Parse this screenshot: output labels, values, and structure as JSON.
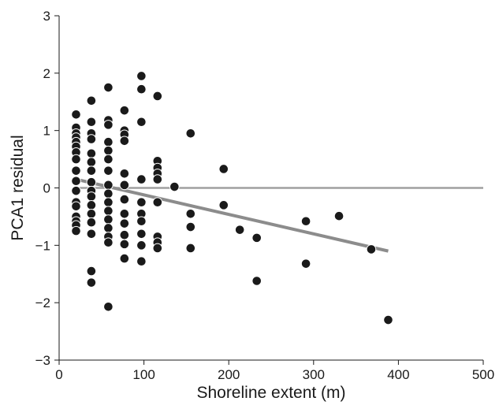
{
  "chart_data": {
    "type": "scatter",
    "xlabel": "Shoreline extent (m)",
    "ylabel": "PCA1 residual",
    "xlim": [
      0,
      500
    ],
    "ylim": [
      -3,
      3
    ],
    "x_ticks": [
      0,
      100,
      200,
      300,
      400,
      500
    ],
    "y_ticks": [
      3,
      2,
      1,
      0,
      -1,
      -2,
      -3
    ],
    "x_tick_labels": [
      "0",
      "100",
      "200",
      "300",
      "400",
      "500"
    ],
    "y_tick_labels": [
      "3",
      "2",
      "1",
      "0",
      "−1",
      "−2",
      "−3"
    ],
    "grid": false,
    "legend": "none",
    "marker_color": "#1a1a1a",
    "line_color": "#8c8c8c",
    "zero_line_color": "#a0a0a0",
    "points": [
      {
        "x": 20,
        "y": 1.28
      },
      {
        "x": 20,
        "y": 1.05
      },
      {
        "x": 20,
        "y": 0.95
      },
      {
        "x": 20,
        "y": 0.88
      },
      {
        "x": 20,
        "y": 0.8
      },
      {
        "x": 20,
        "y": 0.72
      },
      {
        "x": 20,
        "y": 0.62
      },
      {
        "x": 20,
        "y": 0.5
      },
      {
        "x": 20,
        "y": 0.3
      },
      {
        "x": 20,
        "y": 0.12
      },
      {
        "x": 20,
        "y": -0.05
      },
      {
        "x": 20,
        "y": -0.25
      },
      {
        "x": 20,
        "y": -0.32
      },
      {
        "x": 20,
        "y": -0.5
      },
      {
        "x": 20,
        "y": -0.58
      },
      {
        "x": 20,
        "y": -0.65
      },
      {
        "x": 20,
        "y": -0.75
      },
      {
        "x": 38,
        "y": 1.52
      },
      {
        "x": 38,
        "y": 1.15
      },
      {
        "x": 38,
        "y": 0.95
      },
      {
        "x": 38,
        "y": 0.85
      },
      {
        "x": 38,
        "y": 0.6
      },
      {
        "x": 38,
        "y": 0.45
      },
      {
        "x": 38,
        "y": 0.3
      },
      {
        "x": 38,
        "y": 0.1
      },
      {
        "x": 38,
        "y": -0.05
      },
      {
        "x": 38,
        "y": -0.15
      },
      {
        "x": 38,
        "y": -0.3
      },
      {
        "x": 38,
        "y": -0.45
      },
      {
        "x": 38,
        "y": -0.6
      },
      {
        "x": 38,
        "y": -0.8
      },
      {
        "x": 38,
        "y": -1.45
      },
      {
        "x": 38,
        "y": -1.65
      },
      {
        "x": 58,
        "y": 1.75
      },
      {
        "x": 58,
        "y": 1.18
      },
      {
        "x": 58,
        "y": 1.1
      },
      {
        "x": 58,
        "y": 0.8
      },
      {
        "x": 58,
        "y": 0.65
      },
      {
        "x": 58,
        "y": 0.5
      },
      {
        "x": 58,
        "y": 0.3
      },
      {
        "x": 58,
        "y": 0.05
      },
      {
        "x": 58,
        "y": -0.1
      },
      {
        "x": 58,
        "y": -0.25
      },
      {
        "x": 58,
        "y": -0.4
      },
      {
        "x": 58,
        "y": -0.55
      },
      {
        "x": 58,
        "y": -0.7
      },
      {
        "x": 58,
        "y": -0.85
      },
      {
        "x": 58,
        "y": -0.95
      },
      {
        "x": 58,
        "y": -2.07
      },
      {
        "x": 77,
        "y": 1.35
      },
      {
        "x": 77,
        "y": 1.0
      },
      {
        "x": 77,
        "y": 0.93
      },
      {
        "x": 77,
        "y": 0.82
      },
      {
        "x": 77,
        "y": 0.25
      },
      {
        "x": 77,
        "y": 0.05
      },
      {
        "x": 77,
        "y": -0.2
      },
      {
        "x": 77,
        "y": -0.45
      },
      {
        "x": 77,
        "y": -0.62
      },
      {
        "x": 77,
        "y": -0.82
      },
      {
        "x": 77,
        "y": -0.98
      },
      {
        "x": 77,
        "y": -1.23
      },
      {
        "x": 97,
        "y": 1.95
      },
      {
        "x": 97,
        "y": 1.72
      },
      {
        "x": 97,
        "y": 1.15
      },
      {
        "x": 97,
        "y": 0.15
      },
      {
        "x": 97,
        "y": -0.25
      },
      {
        "x": 97,
        "y": -0.45
      },
      {
        "x": 97,
        "y": -0.58
      },
      {
        "x": 97,
        "y": -0.8
      },
      {
        "x": 97,
        "y": -1.0
      },
      {
        "x": 97,
        "y": -1.28
      },
      {
        "x": 116,
        "y": 1.6
      },
      {
        "x": 116,
        "y": 0.47
      },
      {
        "x": 116,
        "y": 0.35
      },
      {
        "x": 116,
        "y": 0.25
      },
      {
        "x": 116,
        "y": 0.15
      },
      {
        "x": 116,
        "y": -0.25
      },
      {
        "x": 116,
        "y": -0.85
      },
      {
        "x": 116,
        "y": -0.95
      },
      {
        "x": 116,
        "y": -1.05
      },
      {
        "x": 136,
        "y": 0.02
      },
      {
        "x": 155,
        "y": 0.95
      },
      {
        "x": 155,
        "y": -0.45
      },
      {
        "x": 155,
        "y": -0.68
      },
      {
        "x": 155,
        "y": -1.05
      },
      {
        "x": 194,
        "y": 0.33
      },
      {
        "x": 194,
        "y": -0.3
      },
      {
        "x": 213,
        "y": -0.73
      },
      {
        "x": 233,
        "y": -0.87
      },
      {
        "x": 233,
        "y": -1.62
      },
      {
        "x": 291,
        "y": -0.58
      },
      {
        "x": 291,
        "y": -1.32
      },
      {
        "x": 330,
        "y": -0.49
      },
      {
        "x": 368,
        "y": -1.07
      },
      {
        "x": 388,
        "y": -2.3
      }
    ],
    "lines": [
      {
        "role": "zero-reference",
        "x": [
          20,
          500
        ],
        "y": [
          0,
          0
        ]
      },
      {
        "role": "regression",
        "x": [
          20,
          388
        ],
        "y": [
          0.15,
          -1.1
        ]
      }
    ]
  }
}
